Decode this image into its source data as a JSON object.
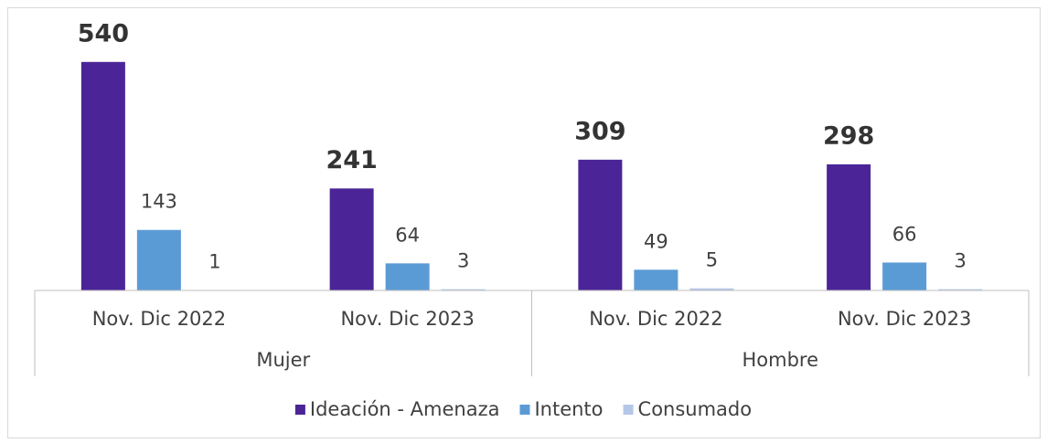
{
  "chart_data": {
    "type": "bar",
    "categories": [
      "Nov. Dic 2022",
      "Nov. Dic 2023",
      "Nov. Dic 2022",
      "Nov. Dic 2023"
    ],
    "groups": [
      "Mujer",
      "Hombre"
    ],
    "series": [
      {
        "name": "Ideación - Amenaza",
        "color": "#4b2597",
        "values": [
          540,
          241,
          309,
          298
        ]
      },
      {
        "name": "Intento",
        "color": "#5b9bd5",
        "values": [
          143,
          64,
          49,
          66
        ]
      },
      {
        "name": "Consumado",
        "color": "#b4c7e7",
        "values": [
          1,
          3,
          5,
          3
        ]
      }
    ],
    "ylim": [
      0,
      600
    ],
    "legend": "bottom"
  }
}
